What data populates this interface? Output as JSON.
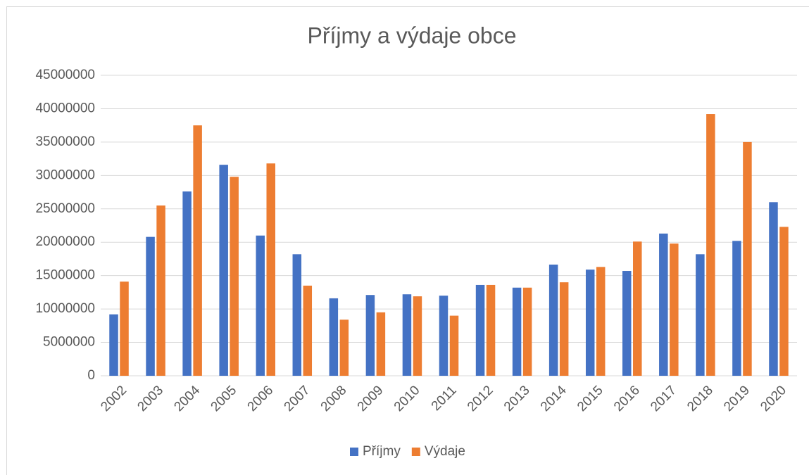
{
  "chart_data": {
    "type": "bar",
    "title": "Příjmy a výdaje obce",
    "categories": [
      "2002",
      "2003",
      "2004",
      "2005",
      "2006",
      "2007",
      "2008",
      "2009",
      "2010",
      "2011",
      "2012",
      "2013",
      "2014",
      "2015",
      "2016",
      "2017",
      "2018",
      "2019",
      "2020"
    ],
    "series": [
      {
        "name": "Příjmy",
        "color": "#4472c4",
        "values": [
          9200000,
          20800000,
          27600000,
          31600000,
          21000000,
          18200000,
          11600000,
          12100000,
          12200000,
          12000000,
          13600000,
          13200000,
          16650000,
          15900000,
          15700000,
          21300000,
          18200000,
          20200000,
          26000000
        ]
      },
      {
        "name": "Výdaje",
        "color": "#ed7d31",
        "values": [
          14100000,
          25500000,
          37500000,
          29800000,
          31800000,
          13500000,
          8400000,
          9500000,
          11900000,
          9000000,
          13600000,
          13200000,
          14000000,
          16300000,
          20100000,
          19800000,
          39200000,
          35000000,
          22300000
        ]
      }
    ],
    "ylim": [
      0,
      45000000
    ],
    "yticks": [
      0,
      5000000,
      10000000,
      15000000,
      20000000,
      25000000,
      30000000,
      35000000,
      40000000,
      45000000
    ],
    "grid": true,
    "legend": "bottom"
  }
}
